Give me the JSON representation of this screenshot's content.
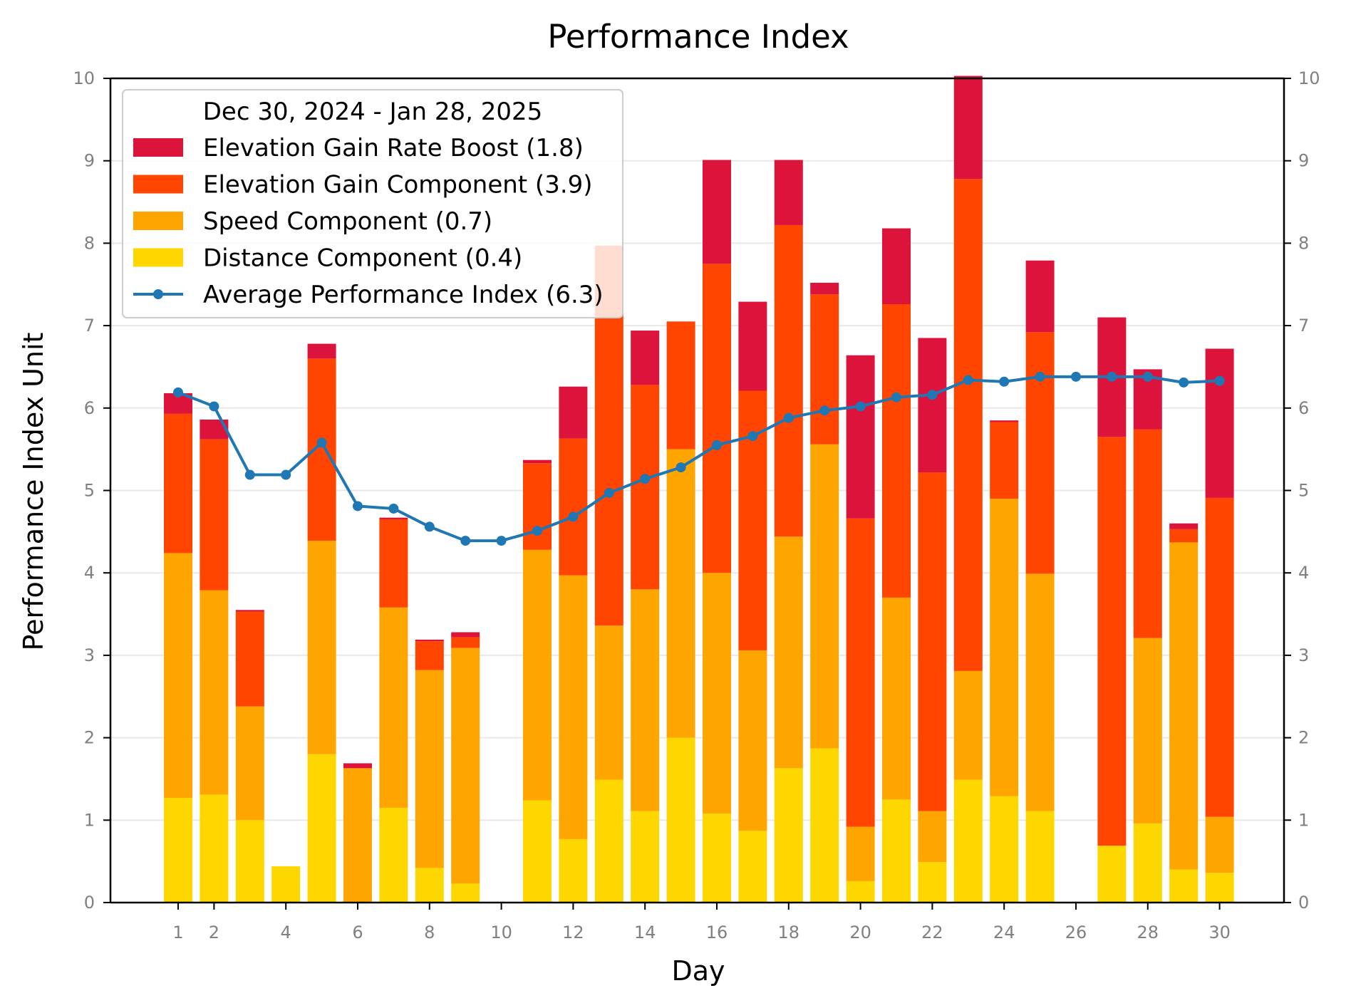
{
  "chart_data": {
    "type": "bar",
    "stacked": true,
    "title": "Performance Index",
    "xlabel": "Day",
    "ylabel": "Performance Index Unit",
    "x": [
      1,
      2,
      3,
      4,
      5,
      6,
      7,
      8,
      9,
      10,
      11,
      12,
      13,
      14,
      15,
      16,
      17,
      18,
      19,
      20,
      21,
      22,
      23,
      24,
      25,
      26,
      27,
      28,
      29,
      30
    ],
    "xticks": [
      1,
      2,
      4,
      6,
      8,
      10,
      12,
      14,
      16,
      18,
      20,
      22,
      24,
      26,
      28,
      30
    ],
    "xlim": [
      -18.5,
      32.6
    ],
    "ylim": [
      0,
      10
    ],
    "yticks": [
      0,
      1,
      2,
      3,
      4,
      5,
      6,
      7,
      8,
      9,
      10
    ],
    "grid": "horizontal",
    "secondary_y_axis": true,
    "legend": {
      "title": "Dec 30, 2024 - Jan 28, 2025",
      "placement": "upper-left"
    },
    "series": [
      {
        "name": "Distance Component (0.4)",
        "kind": "bar",
        "color": "#FFD700",
        "values": [
          1.27,
          1.31,
          1.0,
          0.44,
          1.8,
          0.0,
          1.15,
          0.42,
          0.23,
          0.0,
          1.24,
          0.77,
          1.49,
          1.11,
          2.0,
          1.08,
          0.87,
          1.63,
          1.87,
          0.26,
          1.25,
          0.49,
          1.49,
          1.29,
          1.11,
          0.0,
          0.69,
          0.96,
          0.4,
          0.36
        ]
      },
      {
        "name": "Speed Component (0.7)",
        "kind": "bar",
        "color": "#FFA500",
        "values": [
          2.97,
          2.48,
          1.38,
          0.0,
          2.59,
          1.63,
          2.43,
          2.4,
          2.86,
          0.0,
          3.04,
          3.2,
          1.87,
          2.69,
          3.5,
          2.92,
          2.19,
          2.81,
          3.69,
          0.66,
          2.45,
          0.62,
          1.32,
          3.61,
          2.88,
          0.0,
          0.0,
          2.25,
          3.97,
          0.68
        ]
      },
      {
        "name": "Elevation Gain Component (3.9)",
        "kind": "bar",
        "color": "#FF4500",
        "values": [
          1.69,
          1.83,
          1.15,
          0.0,
          2.21,
          0.0,
          1.07,
          0.35,
          0.13,
          0.0,
          1.05,
          1.66,
          4.61,
          2.48,
          1.55,
          3.75,
          3.15,
          3.78,
          1.82,
          3.74,
          3.56,
          4.11,
          5.97,
          0.93,
          2.93,
          0.0,
          4.96,
          2.53,
          0.16,
          3.87
        ]
      },
      {
        "name": "Elevation Gain Rate Boost (1.8)",
        "kind": "bar",
        "color": "#DC143C",
        "values": [
          0.25,
          0.24,
          0.02,
          0.0,
          0.18,
          0.06,
          0.02,
          0.02,
          0.06,
          0.0,
          0.04,
          0.63,
          0.0,
          0.66,
          0.0,
          1.26,
          1.08,
          0.79,
          0.14,
          1.98,
          0.92,
          1.63,
          1.25,
          0.02,
          0.87,
          0.0,
          1.45,
          0.73,
          0.07,
          1.81
        ]
      },
      {
        "name": "Average Performance Index (6.3)",
        "kind": "line",
        "color": "#1F77B4",
        "x": [
          1,
          2,
          3,
          4,
          5,
          6,
          7,
          8,
          9,
          10,
          11,
          12,
          13,
          14,
          15,
          16,
          17,
          18,
          19,
          20,
          21,
          22,
          23,
          24,
          25,
          26,
          27,
          28,
          29,
          30
        ],
        "values": [
          6.19,
          6.02,
          5.19,
          5.19,
          5.58,
          4.81,
          4.78,
          4.56,
          4.39,
          4.39,
          4.51,
          4.68,
          4.97,
          5.14,
          5.28,
          5.55,
          5.66,
          5.88,
          5.97,
          6.02,
          6.13,
          6.16,
          6.34,
          6.32,
          6.38,
          6.38,
          6.38,
          6.38,
          6.31,
          6.33
        ]
      }
    ],
    "legend_order": [
      "Elevation Gain Rate Boost (1.8)",
      "Elevation Gain Component (3.9)",
      "Speed Component (0.7)",
      "Distance Component (0.4)",
      "Average Performance Index (6.3)"
    ]
  }
}
